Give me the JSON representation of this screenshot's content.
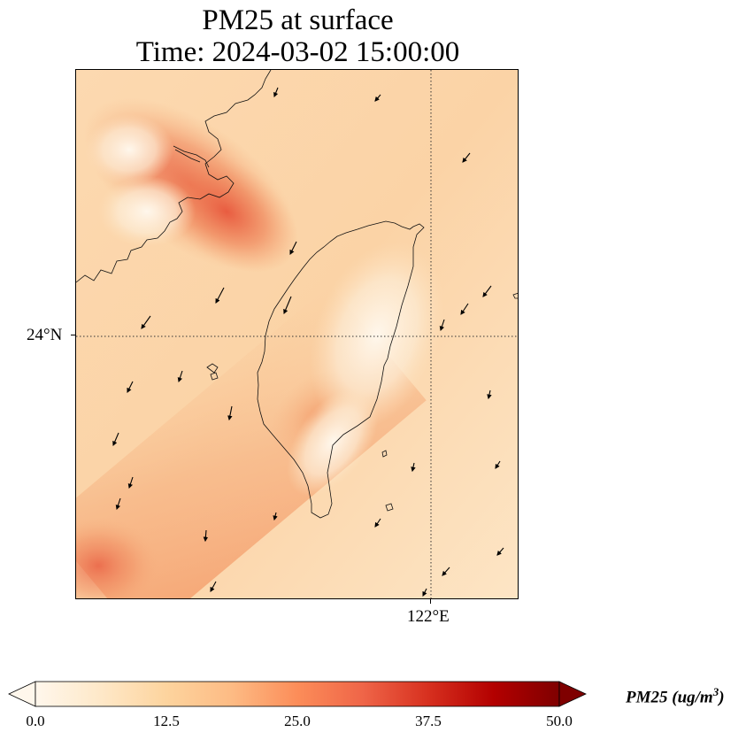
{
  "title": {
    "line1": "PM25 at surface",
    "line2": "Time: 2024-03-02 15:00:00"
  },
  "map": {
    "lat_label": "24°N",
    "lon_label": "122°E",
    "gridline_style": "dotted",
    "colormap": "OrRd",
    "land_overlay": "Taiwan coastline with Fujian coast in upper-left"
  },
  "colorbar": {
    "label_main": "PM25 (ug/m",
    "label_sup": "3",
    "label_end": ")",
    "ticks": [
      "0.0",
      "12.5",
      "25.0",
      "37.5",
      "50.0"
    ],
    "min": 0,
    "max": 50,
    "extend": "both"
  },
  "colors": {
    "low": "#fff7ec",
    "mid_low": "#fdd49e",
    "mid": "#fc8d59",
    "high": "#d7301f",
    "max": "#7f0000"
  }
}
